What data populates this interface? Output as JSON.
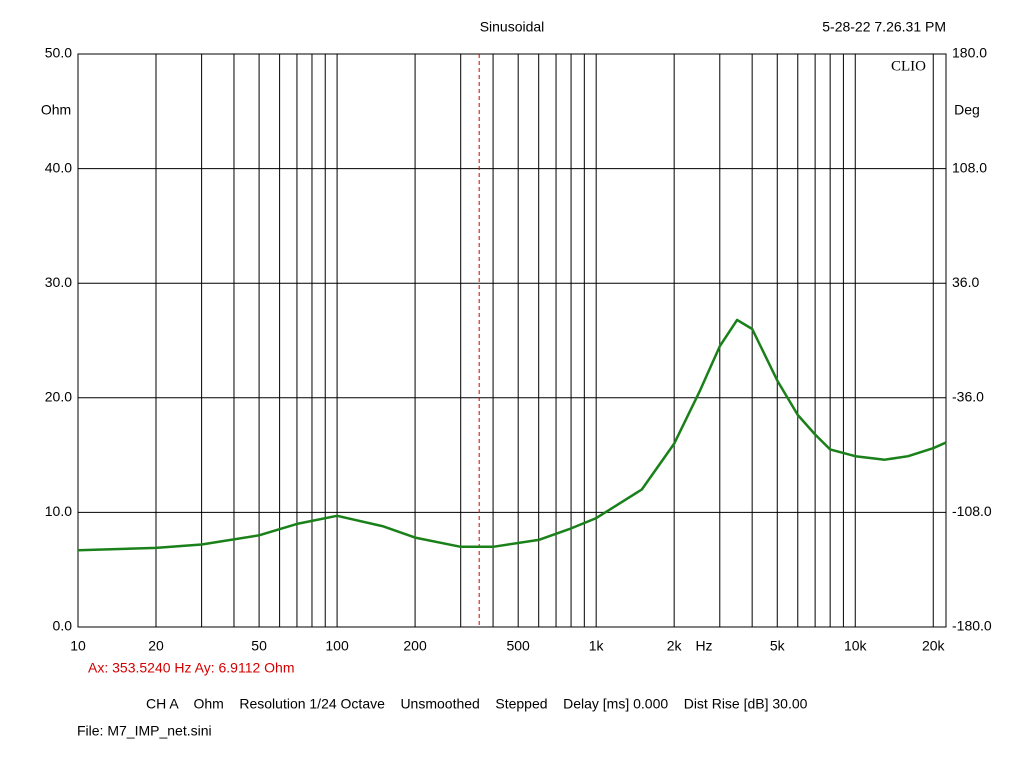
{
  "chart_data": {
    "type": "line",
    "title": "Sinusoidal",
    "timestamp": "5-28-22 7.26.31 PM",
    "brand": "CLIO",
    "y_unit": "Ohm",
    "y2_unit": "Deg",
    "x_unit": "Hz",
    "log_x": true,
    "xlim": [
      10,
      22400
    ],
    "ylim": [
      0,
      50
    ],
    "y2lim": [
      -180,
      180
    ],
    "xticks": [
      10,
      20,
      50,
      100,
      200,
      500,
      {
        "value": 1000,
        "label": "1k"
      },
      {
        "value": 2000,
        "label": "2k"
      },
      {
        "value": 5000,
        "label": "5k"
      },
      {
        "value": 10000,
        "label": "10k"
      },
      {
        "value": 20000,
        "label": "20k"
      }
    ],
    "x_grid": [
      10,
      20,
      30,
      40,
      50,
      60,
      70,
      80,
      90,
      100,
      200,
      300,
      400,
      500,
      600,
      700,
      800,
      900,
      1000,
      2000,
      3000,
      4000,
      5000,
      6000,
      7000,
      8000,
      9000,
      10000,
      20000
    ],
    "yticks": [
      {
        "value": 0,
        "label": "0.0"
      },
      {
        "value": 10,
        "label": "10.0"
      },
      {
        "value": 20,
        "label": "20.0"
      },
      {
        "value": 30,
        "label": "30.0"
      },
      {
        "value": 40,
        "label": "40.0"
      },
      {
        "value": 50,
        "label": "50.0"
      }
    ],
    "y2ticks": [
      {
        "value": -180,
        "label": "-180.0"
      },
      {
        "value": -108,
        "label": "-108.0"
      },
      {
        "value": -36,
        "label": "-36.0"
      },
      {
        "value": 36,
        "label": "36.0"
      },
      {
        "value": 108,
        "label": "108.0"
      },
      {
        "value": 180,
        "label": "180.0"
      }
    ],
    "x": [
      10,
      20,
      30,
      50,
      70,
      100,
      150,
      200,
      300,
      400,
      600,
      800,
      1000,
      1500,
      2000,
      2500,
      3000,
      3500,
      4000,
      5000,
      6000,
      7000,
      8000,
      10000,
      13000,
      16000,
      20000,
      22400
    ],
    "series": [
      {
        "color": "#1a801a",
        "values": [
          6.7,
          6.9,
          7.2,
          8.0,
          9.0,
          9.7,
          8.8,
          7.8,
          7.0,
          7.0,
          7.6,
          8.6,
          9.5,
          12.0,
          16.0,
          20.5,
          24.5,
          26.8,
          26.0,
          21.5,
          18.5,
          16.8,
          15.5,
          14.9,
          14.6,
          14.9,
          15.6,
          16.1
        ]
      }
    ],
    "cursor": {
      "x": 353.524,
      "color": "#d40000",
      "label": "Ax: 353.5240 Hz   Ay: 6.9112 Ohm"
    },
    "settings_line": "CH A    Ohm    Resolution 1/24 Octave    Unsmoothed    Stepped    Delay [ms] 0.000    Dist Rise [dB] 30.00",
    "file": "File: M7_IMP_net.sini"
  }
}
